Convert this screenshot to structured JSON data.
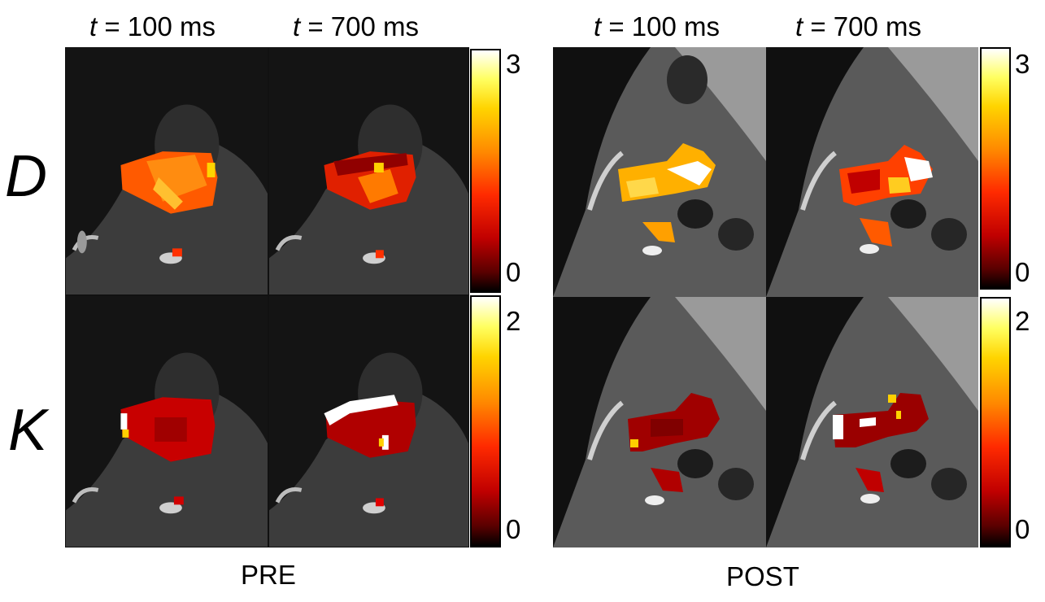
{
  "column_titles": [
    {
      "var": "t",
      "rest": " = 100 ms"
    },
    {
      "var": "t",
      "rest": " = 700 ms"
    },
    {
      "var": "t",
      "rest": " = 100 ms"
    },
    {
      "var": "t",
      "rest": " = 700 ms"
    }
  ],
  "row_labels": [
    "D",
    "K"
  ],
  "group_labels": [
    "PRE",
    "POST"
  ],
  "colorbars": {
    "D": {
      "max": "3",
      "min": "0"
    },
    "K": {
      "max": "2",
      "min": "0"
    }
  },
  "colormap": [
    "#000000",
    "#5a0000",
    "#c00000",
    "#ff2a00",
    "#ff8a00",
    "#ffd400",
    "#ffff60",
    "#ffffff"
  ],
  "panels": [
    {
      "name": "pre-D-t100",
      "group": "PRE",
      "row": "D",
      "time": "100 ms"
    },
    {
      "name": "pre-D-t700",
      "group": "PRE",
      "row": "D",
      "time": "700 ms"
    },
    {
      "name": "post-D-t100",
      "group": "POST",
      "row": "D",
      "time": "100 ms"
    },
    {
      "name": "post-D-t700",
      "group": "POST",
      "row": "D",
      "time": "700 ms"
    },
    {
      "name": "pre-K-t100",
      "group": "PRE",
      "row": "K",
      "time": "100 ms"
    },
    {
      "name": "pre-K-t700",
      "group": "PRE",
      "row": "K",
      "time": "700 ms"
    },
    {
      "name": "post-K-t100",
      "group": "POST",
      "row": "K",
      "time": "100 ms"
    },
    {
      "name": "post-K-t700",
      "group": "POST",
      "row": "K",
      "time": "700 ms"
    }
  ]
}
